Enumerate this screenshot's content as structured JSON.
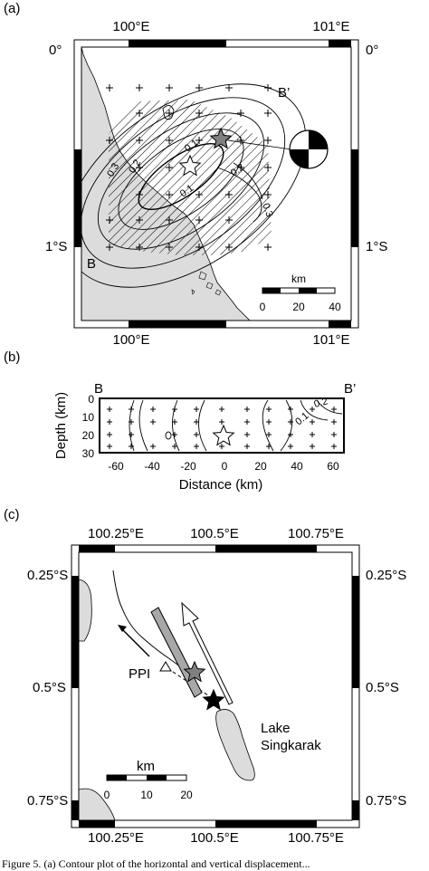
{
  "panel_a": {
    "label": "(a)",
    "lon_labels": [
      "100°E",
      "101°E"
    ],
    "lat_labels": [
      "0°",
      "1°S"
    ],
    "profile_start": "B",
    "profile_end": "B’",
    "contour_labels": [
      "0.1",
      "0.2",
      "0.3",
      "0.1",
      "0.2",
      "0.3",
      "0.3",
      "0.1"
    ],
    "scale": {
      "unit": "km",
      "ticks": [
        "0",
        "20",
        "40"
      ]
    }
  },
  "panel_b": {
    "label": "(b)",
    "profile_start": "B",
    "profile_end": "B’",
    "ylabel": "Depth (km)",
    "xlabel": "Distance (km)",
    "y_ticks": [
      "0",
      "10",
      "20",
      "30"
    ],
    "x_ticks": [
      "-60",
      "-40",
      "-20",
      "0",
      "20",
      "40",
      "60"
    ],
    "contour_labels": [
      "0.2",
      "0.1"
    ]
  },
  "panel_c": {
    "label": "(c)",
    "lon_labels": [
      "100.25°E",
      "100.5°E",
      "100.75°E"
    ],
    "lat_labels": [
      "0.25°S",
      "0.5°S",
      "0.75°S"
    ],
    "station": "PPI",
    "lake_label_1": "Lake",
    "lake_label_2": "Singkarak",
    "scale": {
      "unit": "km",
      "ticks": [
        "0",
        "10",
        "20"
      ]
    }
  },
  "caption_fragment": "Figure 5. (a) Contour plot of the horizontal and vertical displacement..."
}
